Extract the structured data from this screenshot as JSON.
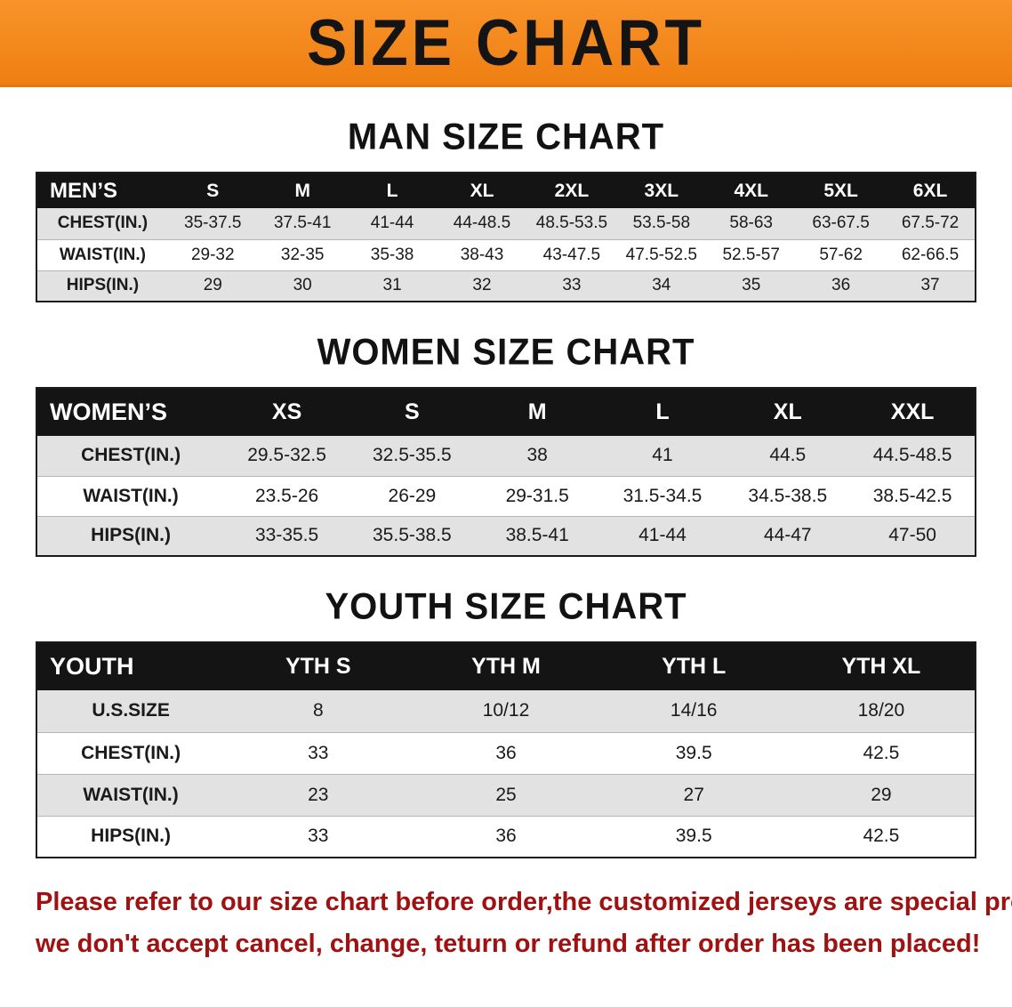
{
  "banner": {
    "title": "SIZE CHART",
    "bg_color": "#f28a1c"
  },
  "sections": [
    {
      "heading": "MAN SIZE CHART",
      "table": {
        "header": [
          "MEN’S",
          "S",
          "M",
          "L",
          "XL",
          "2XL",
          "3XL",
          "4XL",
          "5XL",
          "6XL"
        ],
        "rows": [
          [
            "CHEST(IN.)",
            "35-37.5",
            "37.5-41",
            "41-44",
            "44-48.5",
            "48.5-53.5",
            "53.5-58",
            "58-63",
            "63-67.5",
            "67.5-72"
          ],
          [
            "WAIST(IN.)",
            "29-32",
            "32-35",
            "35-38",
            "38-43",
            "43-47.5",
            "47.5-52.5",
            "52.5-57",
            "57-62",
            "62-66.5"
          ],
          [
            "HIPS(IN.)",
            "29",
            "30",
            "31",
            "32",
            "33",
            "34",
            "35",
            "36",
            "37"
          ]
        ]
      }
    },
    {
      "heading": "WOMEN SIZE CHART",
      "table": {
        "header": [
          "WOMEN’S",
          "XS",
          "S",
          "M",
          "L",
          "XL",
          "XXL"
        ],
        "rows": [
          [
            "CHEST(IN.)",
            "29.5-32.5",
            "32.5-35.5",
            "38",
            "41",
            "44.5",
            "44.5-48.5"
          ],
          [
            "WAIST(IN.)",
            "23.5-26",
            "26-29",
            "29-31.5",
            "31.5-34.5",
            "34.5-38.5",
            "38.5-42.5"
          ],
          [
            "HIPS(IN.)",
            "33-35.5",
            "35.5-38.5",
            "38.5-41",
            "41-44",
            "44-47",
            "47-50"
          ]
        ]
      }
    },
    {
      "heading": "YOUTH SIZE CHART",
      "table": {
        "header": [
          "YOUTH",
          "YTH S",
          "YTH M",
          "YTH L",
          "YTH XL"
        ],
        "rows": [
          [
            "U.S.SIZE",
            "8",
            "10/12",
            "14/16",
            "18/20"
          ],
          [
            "CHEST(IN.)",
            "33",
            "36",
            "39.5",
            "42.5"
          ],
          [
            "WAIST(IN.)",
            "23",
            "25",
            "27",
            "29"
          ],
          [
            "HIPS(IN.)",
            "33",
            "36",
            "39.5",
            "42.5"
          ]
        ]
      }
    }
  ],
  "footer": {
    "line1": "Please refer to our size chart before order,the customized jerseys are special products,",
    "line2": "we don't accept cancel, change, teturn or refund after order has been placed!",
    "text_color": "#a01111"
  }
}
